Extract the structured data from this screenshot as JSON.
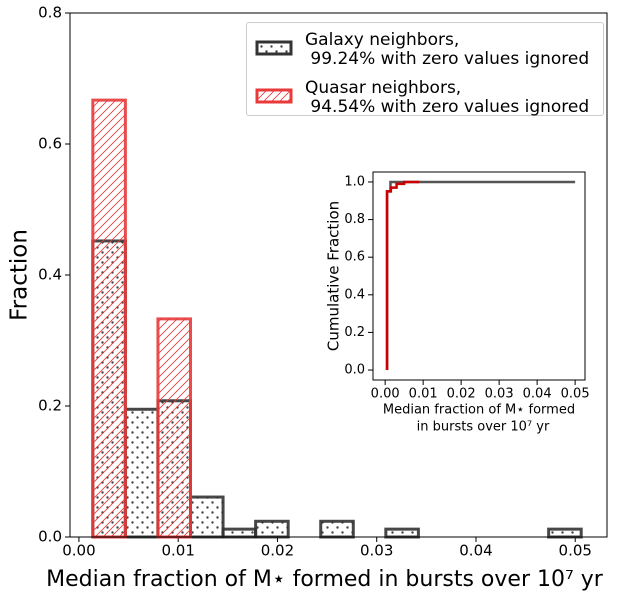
{
  "chart_data": [
    {
      "type": "histogram",
      "ylabel": "Fraction",
      "xlabel": "Median fraction of M⋆ formed in bursts over 10⁷ yr",
      "bins": [
        0.0014,
        0.00468,
        0.00796,
        0.01124,
        0.01452,
        0.0178,
        0.02108,
        0.02436,
        0.02764,
        0.03092,
        0.0342,
        0.03748,
        0.04076,
        0.04404,
        0.04732,
        0.0506
      ],
      "series": [
        {
          "name": "Galaxy neighbors,\n 99.24% with zero values ignored",
          "color": "#333333",
          "hatch": "dots",
          "values": [
            0.452,
            0.195,
            0.208,
            0.061,
            0.012,
            0.024,
            0,
            0.024,
            0,
            0.012,
            0,
            0,
            0,
            0,
            0.012
          ]
        },
        {
          "name": "Quasar neighbors,\n 94.54% with zero values ignored",
          "color": "#e83a3a",
          "hatch": "diagonal",
          "values": [
            0.667,
            0,
            0.333,
            0,
            0,
            0,
            0,
            0,
            0,
            0,
            0,
            0,
            0,
            0,
            0
          ]
        }
      ],
      "xlim": [
        -0.0009,
        0.0532
      ],
      "ylim": [
        0,
        0.8
      ],
      "xticks": [
        {
          "value": 0,
          "label": "0.00"
        },
        {
          "value": 0.01,
          "label": "0.01"
        },
        {
          "value": 0.02,
          "label": "0.02"
        },
        {
          "value": 0.03,
          "label": "0.03"
        },
        {
          "value": 0.04,
          "label": "0.04"
        },
        {
          "value": 0.05,
          "label": "0.05"
        }
      ],
      "yticks": [
        {
          "value": 0,
          "label": "0.0"
        },
        {
          "value": 0.2,
          "label": "0.2"
        },
        {
          "value": 0.4,
          "label": "0.4"
        },
        {
          "value": 0.6,
          "label": "0.6"
        },
        {
          "value": 0.8,
          "label": "0.8"
        }
      ],
      "legend": "upper right"
    },
    {
      "type": "line",
      "ylabel": "Cumulative Fraction",
      "xlabel": [
        "Median fraction of M⋆ formed",
        "in bursts over 10⁷ yr"
      ],
      "series": [
        {
          "color": "#555555",
          "x": [
            0.0005,
            0.0005,
            0.0014,
            0.0014,
            0.05
          ],
          "values": [
            0,
            0.95,
            0.95,
            1.0,
            1.0
          ]
        },
        {
          "color": "#cc0000",
          "x": [
            0.0005,
            0.0005,
            0.0015,
            0.0015,
            0.003,
            0.003,
            0.005,
            0.005,
            0.009
          ],
          "values": [
            0,
            0.95,
            0.95,
            0.97,
            0.97,
            0.99,
            0.99,
            1.0,
            1.0
          ]
        }
      ],
      "xlim": [
        -0.0032,
        0.0526
      ],
      "ylim": [
        -0.053,
        1.053
      ],
      "xticks": [
        {
          "value": 0,
          "label": "0.00"
        },
        {
          "value": 0.01,
          "label": "0.01"
        },
        {
          "value": 0.02,
          "label": "0.02"
        },
        {
          "value": 0.03,
          "label": "0.03"
        },
        {
          "value": 0.04,
          "label": "0.04"
        },
        {
          "value": 0.05,
          "label": "0.05"
        }
      ],
      "yticks": [
        {
          "value": 0,
          "label": "0.0"
        },
        {
          "value": 0.2,
          "label": "0.2"
        },
        {
          "value": 0.4,
          "label": "0.4"
        },
        {
          "value": 0.6,
          "label": "0.6"
        },
        {
          "value": 0.8,
          "label": "0.8"
        },
        {
          "value": 1.0,
          "label": "1.0"
        }
      ]
    }
  ]
}
